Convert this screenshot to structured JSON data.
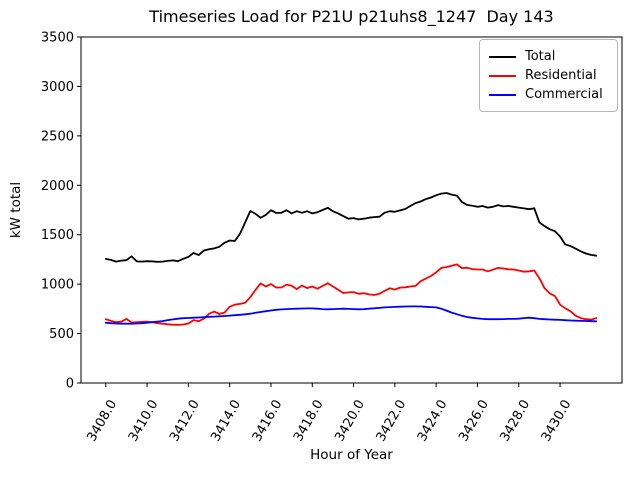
{
  "figure": {
    "background_color": "#ffffff",
    "frame_color": "#000000"
  },
  "chart_data": {
    "type": "line",
    "title": "Timeseries Load for P21U p21uhs8_1247  Day 143",
    "xlabel": "Hour of Year",
    "ylabel": "kW total",
    "xlim": [
      3406.8,
      3433.0
    ],
    "ylim": [
      0,
      3500
    ],
    "grid": false,
    "legend_position": "upper right",
    "xticks": [
      3408.0,
      3410.0,
      3412.0,
      3414.0,
      3416.0,
      3418.0,
      3420.0,
      3422.0,
      3424.0,
      3426.0,
      3428.0,
      3430.0
    ],
    "xtick_labels": [
      "3408.0",
      "3410.0",
      "3412.0",
      "3414.0",
      "3416.0",
      "3418.0",
      "3420.0",
      "3422.0",
      "3424.0",
      "3426.0",
      "3428.0",
      "3430.0"
    ],
    "yticks": [
      0,
      500,
      1000,
      1500,
      2000,
      2500,
      3000,
      3500
    ],
    "ytick_labels": [
      "0",
      "500",
      "1000",
      "1500",
      "2000",
      "2500",
      "3000",
      "3500"
    ],
    "x": [
      3408.0,
      3408.25,
      3408.5,
      3408.75,
      3409.0,
      3409.25,
      3409.5,
      3409.75,
      3410.0,
      3410.25,
      3410.5,
      3410.75,
      3411.0,
      3411.25,
      3411.5,
      3411.75,
      3412.0,
      3412.25,
      3412.5,
      3412.75,
      3413.0,
      3413.25,
      3413.5,
      3413.75,
      3414.0,
      3414.25,
      3414.5,
      3414.75,
      3415.0,
      3415.25,
      3415.5,
      3415.75,
      3416.0,
      3416.25,
      3416.5,
      3416.75,
      3417.0,
      3417.25,
      3417.5,
      3417.75,
      3418.0,
      3418.25,
      3418.5,
      3418.75,
      3419.0,
      3419.25,
      3419.5,
      3419.75,
      3420.0,
      3420.25,
      3420.5,
      3420.75,
      3421.0,
      3421.25,
      3421.5,
      3421.75,
      3422.0,
      3422.25,
      3422.5,
      3422.75,
      3423.0,
      3423.25,
      3423.5,
      3423.75,
      3424.0,
      3424.25,
      3424.5,
      3424.75,
      3425.0,
      3425.25,
      3425.5,
      3425.75,
      3426.0,
      3426.25,
      3426.5,
      3426.75,
      3427.0,
      3427.25,
      3427.5,
      3427.75,
      3428.0,
      3428.25,
      3428.5,
      3428.75,
      3429.0,
      3429.25,
      3429.5,
      3429.75,
      3430.0,
      3430.25,
      3430.5,
      3430.75,
      3431.0,
      3431.25,
      3431.5,
      3431.75
    ],
    "series": [
      {
        "name": "Total",
        "color": "#000000",
        "values": [
          1255,
          1245,
          1228,
          1238,
          1242,
          1282,
          1230,
          1228,
          1232,
          1230,
          1226,
          1228,
          1235,
          1240,
          1232,
          1256,
          1276,
          1316,
          1294,
          1340,
          1352,
          1362,
          1378,
          1418,
          1441,
          1436,
          1510,
          1625,
          1740,
          1712,
          1671,
          1700,
          1748,
          1721,
          1722,
          1748,
          1716,
          1738,
          1722,
          1738,
          1716,
          1728,
          1750,
          1772,
          1738,
          1716,
          1688,
          1662,
          1668,
          1655,
          1662,
          1672,
          1678,
          1682,
          1722,
          1738,
          1732,
          1746,
          1760,
          1790,
          1820,
          1836,
          1860,
          1876,
          1900,
          1916,
          1922,
          1906,
          1896,
          1830,
          1802,
          1792,
          1782,
          1790,
          1774,
          1782,
          1800,
          1786,
          1790,
          1782,
          1774,
          1766,
          1758,
          1768,
          1625,
          1586,
          1556,
          1536,
          1482,
          1402,
          1386,
          1360,
          1332,
          1310,
          1296,
          1288
        ]
      },
      {
        "name": "Residential",
        "color": "#ff0000",
        "values": [
          645,
          628,
          615,
          620,
          648,
          612,
          616,
          618,
          620,
          614,
          605,
          600,
          594,
          590,
          588,
          592,
          602,
          636,
          625,
          650,
          700,
          722,
          698,
          712,
          772,
          792,
          800,
          812,
          868,
          942,
          1008,
          976,
          1000,
          966,
          966,
          995,
          984,
          950,
          986,
          960,
          976,
          954,
          982,
          1010,
          976,
          944,
          910,
          916,
          920,
          902,
          908,
          896,
          890,
          902,
          932,
          958,
          945,
          965,
          968,
          976,
          982,
          1030,
          1056,
          1082,
          1120,
          1164,
          1172,
          1186,
          1200,
          1162,
          1166,
          1152,
          1148,
          1148,
          1130,
          1146,
          1164,
          1158,
          1150,
          1148,
          1138,
          1126,
          1130,
          1138,
          1060,
          958,
          906,
          880,
          792,
          756,
          726,
          682,
          656,
          645,
          640,
          656
        ]
      },
      {
        "name": "Commercial",
        "color": "#0000ff",
        "values": [
          610,
          605,
          602,
          600,
          600,
          600,
          602,
          605,
          610,
          616,
          621,
          626,
          636,
          643,
          650,
          655,
          658,
          661,
          663,
          666,
          670,
          672,
          675,
          678,
          682,
          686,
          690,
          695,
          701,
          710,
          718,
          726,
          733,
          740,
          745,
          748,
          750,
          752,
          754,
          755,
          755,
          752,
          748,
          746,
          748,
          750,
          752,
          750,
          748,
          746,
          748,
          752,
          756,
          760,
          765,
          768,
          770,
          772,
          774,
          775,
          775,
          774,
          771,
          768,
          765,
          752,
          732,
          712,
          696,
          680,
          668,
          660,
          653,
          648,
          645,
          645,
          645,
          646,
          648,
          648,
          650,
          656,
          661,
          655,
          648,
          645,
          642,
          640,
          638,
          635,
          632,
          630,
          628,
          627,
          625,
          624
        ]
      }
    ]
  }
}
